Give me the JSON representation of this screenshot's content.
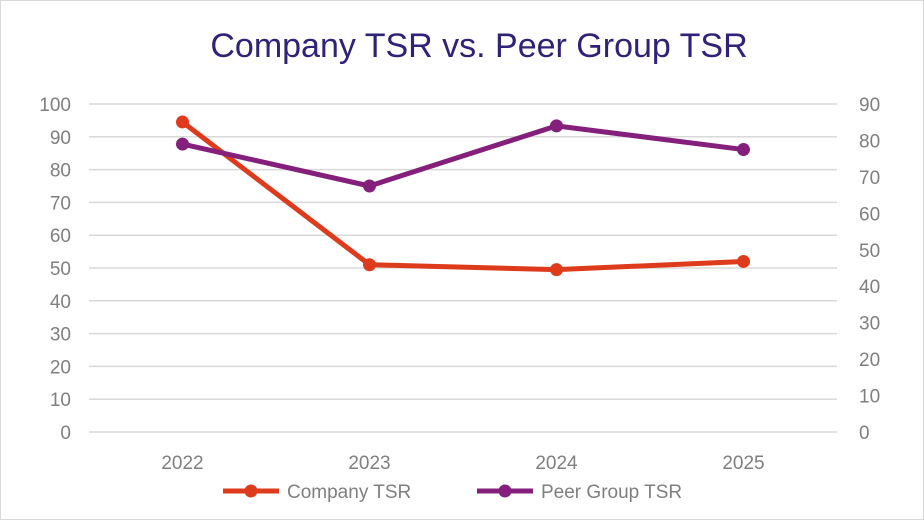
{
  "chart_data": {
    "type": "line",
    "title": "Company TSR vs. Peer Group TSR",
    "categories": [
      "2022",
      "2023",
      "2024",
      "2025"
    ],
    "y_left": {
      "min": 0,
      "max": 100,
      "step": 10,
      "ticks": [
        "0",
        "10",
        "20",
        "30",
        "40",
        "50",
        "60",
        "70",
        "80",
        "90",
        "100"
      ]
    },
    "y_right": {
      "min": 0,
      "max": 90,
      "step": 10,
      "ticks": [
        "0",
        "10",
        "20",
        "30",
        "40",
        "50",
        "60",
        "70",
        "80",
        "90"
      ]
    },
    "grid": true,
    "legend_position": "bottom-center",
    "series": [
      {
        "name": "Company TSR",
        "axis": "left",
        "color": "#de3a1c",
        "values": [
          94.5,
          51,
          49.5,
          52
        ]
      },
      {
        "name": "Peer Group TSR",
        "axis": "right",
        "color": "#84207b",
        "values": [
          79,
          67.5,
          84,
          77.5
        ]
      }
    ]
  }
}
